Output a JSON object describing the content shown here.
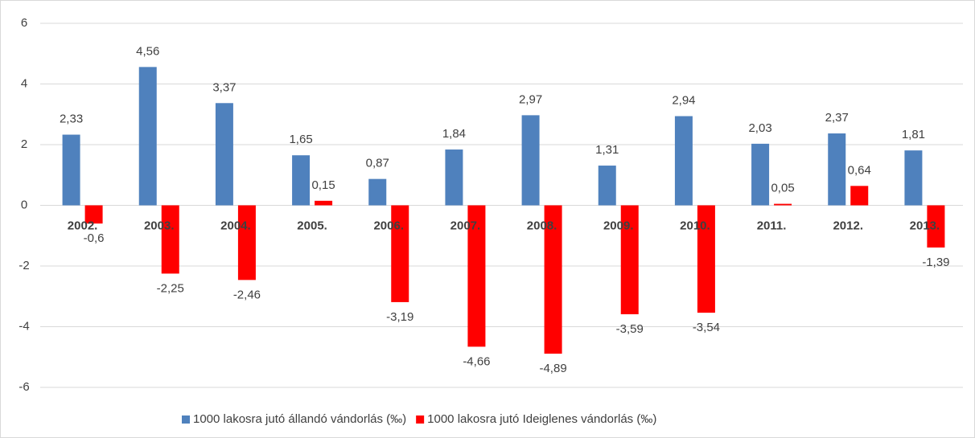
{
  "chart_data": {
    "type": "bar",
    "categories": [
      "2002.",
      "2003.",
      "2004.",
      "2005.",
      "2006.",
      "2007.",
      "2008.",
      "2009.",
      "2010.",
      "2011.",
      "2012.",
      "2013."
    ],
    "series": [
      {
        "name": "1000 lakosra jutó állandó vándorlás (‰)",
        "color": "#4f81bd",
        "values": [
          2.33,
          4.56,
          3.37,
          1.65,
          0.87,
          1.84,
          2.97,
          1.31,
          2.94,
          2.03,
          2.37,
          1.81
        ],
        "value_labels": [
          "2,33",
          "4,56",
          "3,37",
          "1,65",
          "0,87",
          "1,84",
          "2,97",
          "1,31",
          "2,94",
          "2,03",
          "2,37",
          "1,81"
        ]
      },
      {
        "name": "1000 lakosra jutó Ideiglenes vándorlás (‰)",
        "color": "#ff0000",
        "values": [
          -0.6,
          -2.25,
          -2.46,
          0.15,
          -3.19,
          -4.66,
          -4.89,
          -3.59,
          -3.54,
          0.05,
          0.64,
          -1.39
        ],
        "value_labels": [
          "-0,6",
          "-2,25",
          "-2,46",
          "0,15",
          "-3,19",
          "-4,66",
          "-4,89",
          "-3,59",
          "-3,54",
          "0,05",
          "0,64",
          "-1,39"
        ]
      }
    ],
    "ylim": [
      -6,
      6
    ],
    "yticks": [
      -6,
      -4,
      -2,
      0,
      2,
      4,
      6
    ],
    "grid": true,
    "legend": "bottom"
  }
}
